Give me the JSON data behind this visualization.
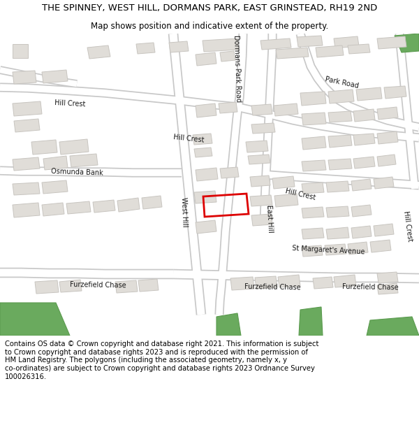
{
  "title_line1": "THE SPINNEY, WEST HILL, DORMANS PARK, EAST GRINSTEAD, RH19 2ND",
  "title_line2": "Map shows position and indicative extent of the property.",
  "copyright_text": "Contains OS data © Crown copyright and database right 2021. This information is subject\nto Crown copyright and database rights 2023 and is reproduced with the permission of\nHM Land Registry. The polygons (including the associated geometry, namely x, y\nco-ordinates) are subject to Crown copyright and database rights 2023 Ordnance Survey\n100026316.",
  "bg_color": "#ffffff",
  "map_bg": "#ffffff",
  "road_color": "#ffffff",
  "road_edge_color": "#c8c8c8",
  "building_color": "#e0ddd8",
  "building_edge": "#c8c5c0",
  "green_color": "#6aaa5e",
  "green_edge": "#5a9a4e",
  "plot_edge": "#dd0000",
  "plot_linewidth": 2.0,
  "title_fontsize": 9.5,
  "subtitle_fontsize": 8.5,
  "footer_fontsize": 7.2
}
